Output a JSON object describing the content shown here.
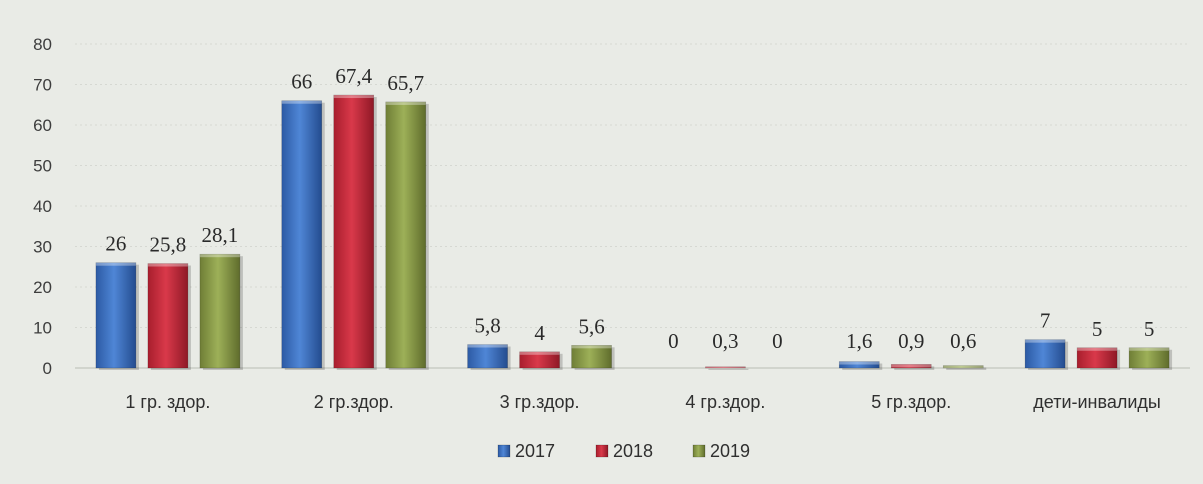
{
  "chart_data": {
    "type": "bar",
    "categories": [
      "1 гр. здор.",
      "2 гр.здор.",
      "3 гр.здор.",
      "4 гр.здор.",
      "5 гр.здор.",
      "дети-инвалиды"
    ],
    "series": [
      {
        "name": "2017",
        "color": "#3a6fc0",
        "values": [
          26,
          66,
          5.8,
          0,
          1.6,
          7
        ],
        "labels": [
          "26",
          "66",
          "5,8",
          "0",
          "1,6",
          "7"
        ]
      },
      {
        "name": "2018",
        "color": "#c8283a",
        "values": [
          25.8,
          67.4,
          4,
          0.3,
          0.9,
          5
        ],
        "labels": [
          "25,8",
          "67,4",
          "4",
          "0,3",
          "0,9",
          "5"
        ]
      },
      {
        "name": "2019",
        "color": "#8a9a48",
        "values": [
          28.1,
          65.7,
          5.6,
          0,
          0.6,
          5
        ],
        "labels": [
          "28,1",
          "65,7",
          "5,6",
          "0",
          "0,6",
          "5"
        ]
      }
    ],
    "yticks": [
      "0",
      "10",
      "20",
      "30",
      "40",
      "50",
      "60",
      "70",
      "80"
    ],
    "ylim": [
      0,
      80
    ],
    "grid": true,
    "legend_position": "bottom",
    "title": "",
    "xlabel": "",
    "ylabel": ""
  }
}
